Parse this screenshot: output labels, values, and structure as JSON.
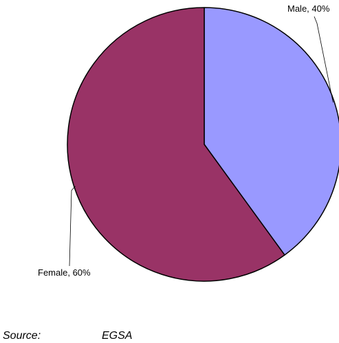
{
  "chart_data": {
    "type": "pie",
    "slices": [
      {
        "label": "Male",
        "value": 40,
        "display": "Male, 40%",
        "color": "#9999ff"
      },
      {
        "label": "Female",
        "value": 60,
        "display": "Female, 60%",
        "color": "#993366"
      }
    ],
    "start_angle_deg": 0,
    "direction": "clockwise",
    "slice_border_color": "#000000"
  },
  "source": {
    "label": "Source:",
    "value": "EGSA"
  }
}
